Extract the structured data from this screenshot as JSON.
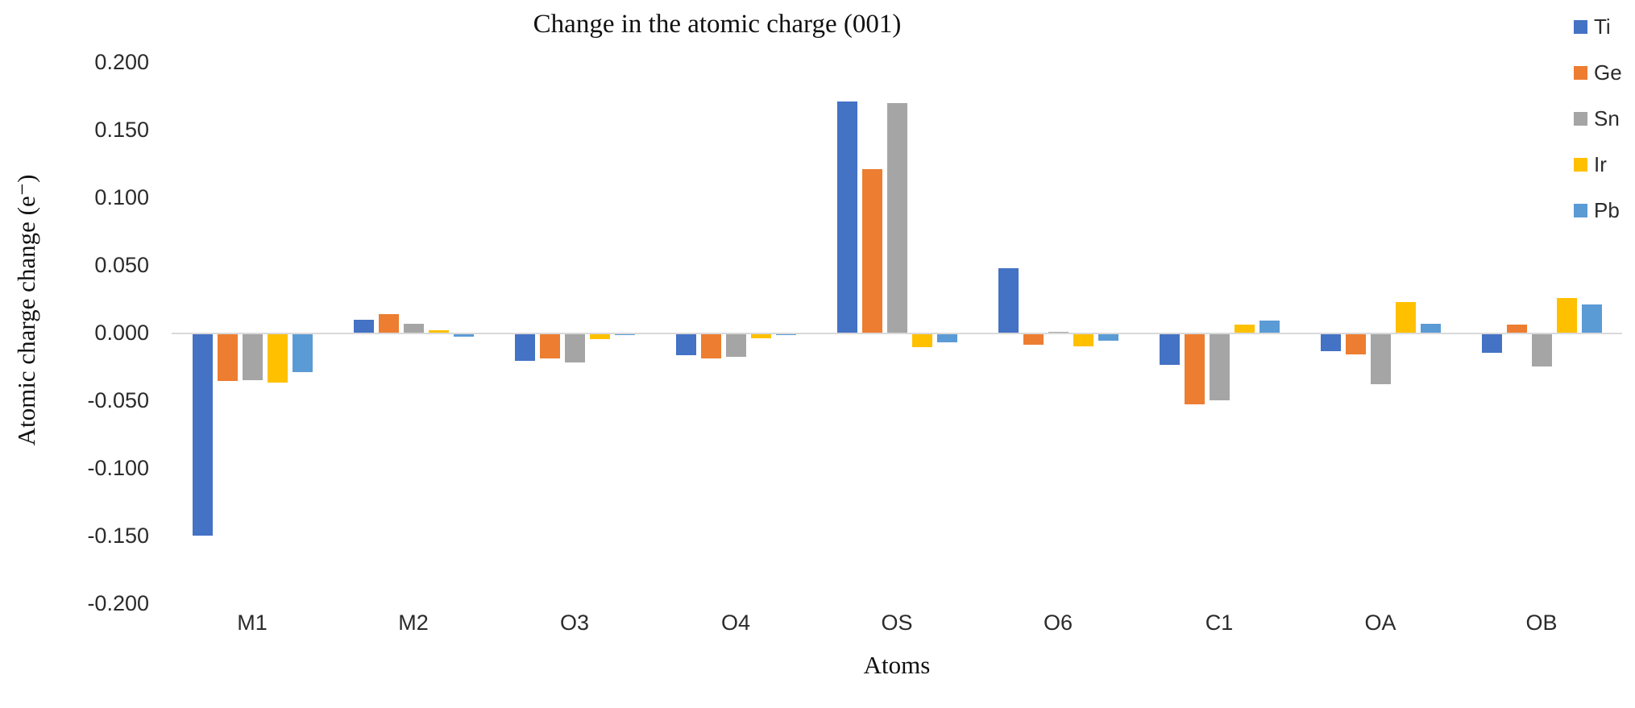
{
  "chart_data": {
    "type": "bar",
    "title": "Change in the atomic charge (001)",
    "xlabel": "Atoms",
    "ylabel": "Atomic charge change (e⁻)",
    "ylim": [
      -0.2,
      0.2
    ],
    "ytick_step": 0.05,
    "grid": false,
    "background": "#ffffff",
    "axis_line_color": "#d9d9d9",
    "legend_position": "top-right",
    "yticks": [
      {
        "label": "0.200",
        "value": 0.2
      },
      {
        "label": "0.150",
        "value": 0.15
      },
      {
        "label": "0.100",
        "value": 0.1
      },
      {
        "label": "0.050",
        "value": 0.05
      },
      {
        "label": "0.000",
        "value": 0.0
      },
      {
        "label": "-0.050",
        "value": -0.05
      },
      {
        "label": "-0.100",
        "value": -0.1
      },
      {
        "label": "-0.150",
        "value": -0.15
      },
      {
        "label": "-0.200",
        "value": -0.2
      }
    ],
    "categories": [
      "M1",
      "M2",
      "O3",
      "O4",
      "OS",
      "O6",
      "C1",
      "OA",
      "OB"
    ],
    "series": [
      {
        "name": "Ti",
        "color": "#4472C4",
        "values": [
          -0.149,
          0.01,
          -0.02,
          -0.016,
          0.171,
          0.048,
          -0.023,
          -0.013,
          -0.014
        ]
      },
      {
        "name": "Ge",
        "color": "#ED7D31",
        "values": [
          -0.035,
          0.014,
          -0.018,
          -0.018,
          0.121,
          -0.008,
          -0.052,
          -0.015,
          0.006
        ]
      },
      {
        "name": "Sn",
        "color": "#A5A5A5",
        "values": [
          -0.034,
          0.007,
          -0.021,
          -0.017,
          0.17,
          0.001,
          -0.049,
          -0.037,
          -0.024
        ]
      },
      {
        "name": "Ir",
        "color": "#FFC000",
        "values": [
          -0.036,
          0.002,
          -0.004,
          -0.003,
          -0.01,
          -0.009,
          0.006,
          0.023,
          0.026
        ]
      },
      {
        "name": "Pb",
        "color": "#5B9BD5",
        "values": [
          -0.028,
          -0.002,
          -0.001,
          -0.001,
          -0.006,
          -0.005,
          0.009,
          0.007,
          0.021
        ]
      }
    ]
  }
}
